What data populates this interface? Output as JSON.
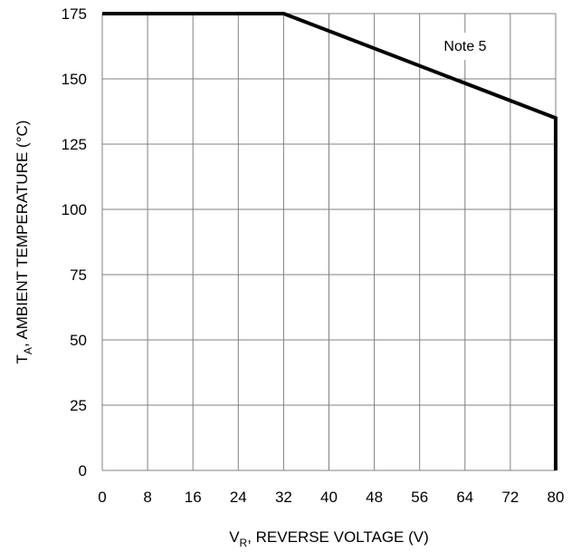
{
  "chart_data": {
    "type": "line",
    "title": "",
    "xlabel": {
      "main": "V",
      "subscript": "R",
      "rest": ", REVERSE VOLTAGE (V)"
    },
    "ylabel": {
      "main": "T",
      "subscript": "A",
      "rest": ", AMBIENT TEMPERATURE (°C)"
    },
    "xlim": [
      0,
      80
    ],
    "ylim": [
      0,
      175
    ],
    "xticks": [
      0,
      8,
      16,
      24,
      32,
      40,
      48,
      56,
      64,
      72,
      80
    ],
    "yticks": [
      0,
      25,
      50,
      75,
      100,
      125,
      150,
      175
    ],
    "grid": true,
    "series": [
      {
        "x": [
          0,
          32,
          80,
          80
        ],
        "y": [
          175,
          175,
          135,
          0
        ]
      }
    ],
    "annotations": [
      {
        "text": "Note 5"
      }
    ],
    "colors": {
      "line": "#000000",
      "grid": "#808080",
      "note_bg": "#ffffff"
    }
  }
}
